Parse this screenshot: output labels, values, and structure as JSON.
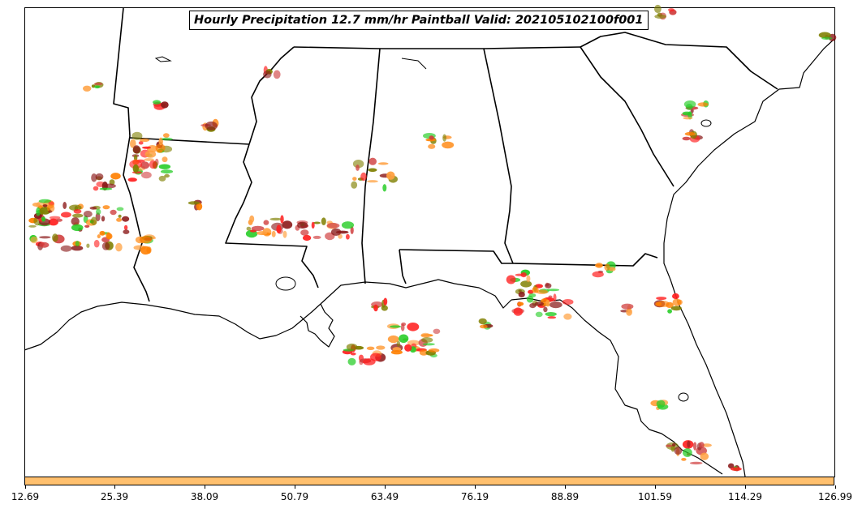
{
  "map": {
    "title": "Hourly Precipitation 12.7 mm/hr Paintball Valid: 202105102100f001",
    "colors": {
      "boundary": "#000000",
      "frame": "#000000",
      "colorbar_fill": "#ffc06e",
      "paintball_palette": [
        "#ff7f00",
        "#ff2020",
        "#22cc22",
        "#8b1a1a",
        "#7f7f00",
        "#ffa040",
        "#d04040"
      ]
    }
  },
  "colorbar": {
    "ticks": [
      "12.69",
      "25.39",
      "38.09",
      "50.79",
      "63.49",
      "76.19",
      "88.89",
      "101.59",
      "114.29",
      "126.99"
    ]
  }
}
